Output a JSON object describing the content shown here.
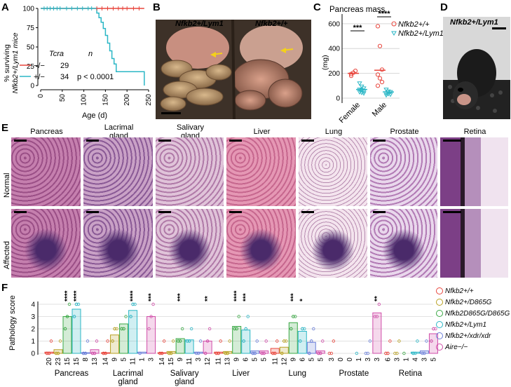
{
  "panels": {
    "A": "A",
    "B": "B",
    "C": "C",
    "D": "D",
    "E": "E",
    "F": "F"
  },
  "panelA": {
    "ylabel_line1": "% surviving",
    "ylabel_line2": "Nfkb2+/Lym1 mice",
    "xlabel": "Age (d)",
    "legend_header_gene": "Tcra",
    "legend_header_n": "n",
    "rows": [
      {
        "genotype": "−/−",
        "n": "29",
        "color": "#e8453c"
      },
      {
        "genotype": "+/−",
        "n": "34",
        "color": "#2bb7c6"
      }
    ],
    "pvalue": "p < 0.0001",
    "yticks": [
      "0",
      "25",
      "50",
      "75",
      "100"
    ],
    "xticks": [
      "0",
      "50",
      "100",
      "150",
      "200",
      "250"
    ]
  },
  "panelB": {
    "label_left": "Nfkb2+/Lym1",
    "label_right": "Nfkb2+/+"
  },
  "panelC": {
    "title": "Pancreas mass",
    "ylabel": "(mg)",
    "yticks": [
      "0",
      "200",
      "400",
      "600"
    ],
    "categories": [
      "Female",
      "Male"
    ],
    "sig": [
      "***",
      "****"
    ],
    "legend": [
      "Nfkb2+/+",
      "Nfkb2+/Lym1"
    ]
  },
  "panelD": {
    "label": "Nfkb2+/Lym1"
  },
  "panelE": {
    "tissues": [
      "Pancreas",
      "Lacrimal gland",
      "Salivary gland",
      "Liver",
      "Lung",
      "Prostate",
      "Retina"
    ],
    "rows": [
      "Normal",
      "Affected"
    ]
  },
  "panelF": {
    "ylabel": "Pathology score",
    "yticks": [
      "0",
      "1",
      "2",
      "3",
      "4"
    ],
    "legend": [
      {
        "label": "Nfkb2+/+",
        "color": "#e8453c"
      },
      {
        "label": "Nfkb2+/D865G",
        "color": "#b8a020"
      },
      {
        "label": "Nfkb2D865G/D865G",
        "color": "#3aa845"
      },
      {
        "label": "Nfkb2+/Lym1",
        "color": "#2bb7c6"
      },
      {
        "label": "Nfkb2+/xdr/xdr",
        "color": "#6a7ed8"
      },
      {
        "label": "Aire−/−",
        "color": "#d04ca8"
      }
    ]
  },
  "chart_data": [
    {
      "type": "line",
      "title": "",
      "xlabel": "Age (d)",
      "ylabel": "% surviving Nfkb2+/Lym1 mice",
      "xlim": [
        0,
        250
      ],
      "ylim": [
        0,
        100
      ],
      "series": [
        {
          "name": "Tcra −/−",
          "x": [
            0,
            240
          ],
          "y": [
            100,
            100
          ]
        },
        {
          "name": "Tcra +/−",
          "x": [
            0,
            125,
            130,
            135,
            140,
            145,
            150,
            155,
            160,
            165,
            170,
            175,
            235,
            240
          ],
          "y": [
            100,
            100,
            94,
            88,
            82,
            74,
            65,
            55,
            45,
            35,
            28,
            18,
            18,
            0
          ]
        }
      ]
    },
    {
      "type": "scatter",
      "title": "Pancreas mass",
      "ylabel": "(mg)",
      "categories": [
        "Female",
        "Male"
      ],
      "ylim": [
        0,
        650
      ],
      "series": [
        {
          "name": "Nfkb2+/+",
          "mean": [
            200,
            225
          ],
          "points": [
            [
              180,
              205,
              220,
              195
            ],
            [
              580,
              420,
              230,
              190,
              160,
              130,
              100
            ]
          ]
        },
        {
          "name": "Nfkb2+/Lym1",
          "mean": [
            70,
            50
          ],
          "points": [
            [
              120,
              95,
              80,
              70,
              65,
              55,
              50,
              45,
              40
            ],
            [
              70,
              55,
              50,
              40,
              35,
              30,
              25
            ]
          ]
        }
      ],
      "significance": [
        "***",
        "****"
      ]
    },
    {
      "type": "bar",
      "title": "",
      "ylabel": "Pathology score",
      "ylim": [
        0,
        4
      ],
      "categories": [
        "Pancreas",
        "Lacrimal gland",
        "Salivary gland",
        "Liver",
        "Lung",
        "Prostate",
        "Retina"
      ],
      "series": [
        {
          "name": "Nfkb2+/+",
          "values": [
            0.1,
            0.05,
            0.05,
            0.1,
            0.4,
            0.0,
            0.0
          ],
          "n": [
            20,
            14,
            14,
            11,
            11,
            3,
            6
          ]
        },
        {
          "name": "Nfkb2+/D865G",
          "values": [
            0.3,
            1.5,
            0.15,
            0.15,
            0.5,
            0.0,
            0.0
          ],
          "n": [
            23,
            9,
            15,
            13,
            12,
            0,
            3
          ]
        },
        {
          "name": "Nfkb2D865G/D865G",
          "values": [
            3.0,
            2.4,
            1.2,
            2.2,
            2.5,
            0.0,
            0.0
          ],
          "n": [
            15,
            5,
            9,
            9,
            9,
            0,
            1
          ]
        },
        {
          "name": "Nfkb2+/Lym1",
          "values": [
            3.6,
            3.5,
            1.1,
            1.9,
            1.8,
            0.0,
            0.1
          ],
          "n": [
            15,
            11,
            11,
            6,
            6,
            1,
            4
          ]
        },
        {
          "name": "Nfkb2+/xdr/xdr",
          "values": [
            0.05,
            0.1,
            0.1,
            0.2,
            0.9,
            0.0,
            0.2
          ],
          "n": [
            8,
            1,
            3,
            5,
            5,
            3,
            3
          ]
        },
        {
          "name": "Aire−/−",
          "values": [
            0.3,
            3.0,
            1.0,
            0.2,
            0.2,
            3.3,
            1.6
          ],
          "n": [
            13,
            3,
            12,
            5,
            5,
            3,
            5
          ]
        }
      ],
      "significance": [
        [
          "",
          "",
          "****",
          "****",
          "",
          ""
        ],
        [
          "",
          "",
          "",
          "****",
          "",
          "***"
        ],
        [
          "",
          "",
          "***",
          "",
          "",
          "**"
        ],
        [
          "",
          "",
          "****",
          "***",
          "",
          ""
        ],
        [
          "",
          "",
          "***",
          "*",
          "",
          ""
        ],
        [
          "",
          "",
          "",
          "",
          "",
          "**"
        ],
        [
          "",
          "",
          "",
          "",
          "",
          ""
        ]
      ]
    }
  ]
}
